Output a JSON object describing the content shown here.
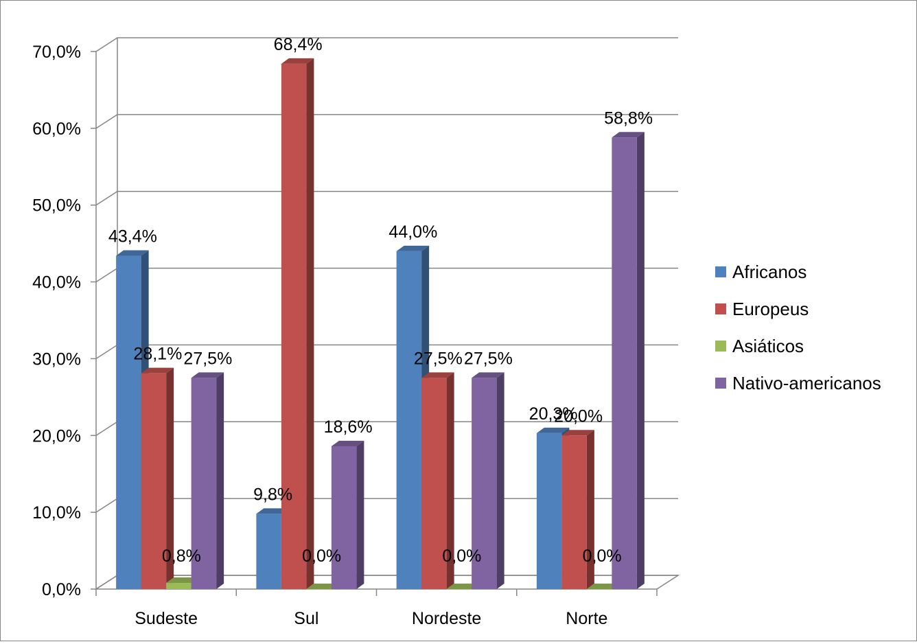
{
  "chart_data": {
    "type": "bar",
    "categories": [
      "Sudeste",
      "Sul",
      "Nordeste",
      "Norte"
    ],
    "series": [
      {
        "name": "Africanos",
        "values": [
          43.4,
          9.8,
          44.0,
          20.3
        ],
        "labels": [
          "43,4%",
          "9,8%",
          "44,0%",
          "20,3%"
        ],
        "color": "#4F81BD"
      },
      {
        "name": "Europeus",
        "values": [
          28.1,
          68.4,
          27.5,
          20.0
        ],
        "labels": [
          "28,1%",
          "68,4%",
          "27,5%",
          "20,0%"
        ],
        "color": "#C0504D"
      },
      {
        "name": "Asiáticos",
        "values": [
          0.8,
          0.0,
          0.0,
          0.0
        ],
        "labels": [
          "0,8%",
          "0,0%",
          "0,0%",
          "0,0%"
        ],
        "color": "#9BBB59"
      },
      {
        "name": "Nativo-americanos",
        "values": [
          27.5,
          18.6,
          27.5,
          58.8
        ],
        "labels": [
          "27,5%",
          "18,6%",
          "27,5%",
          "58,8%"
        ],
        "color": "#8064A2"
      }
    ],
    "y_ticks": [
      "0,0%",
      "10,0%",
      "20,0%",
      "30,0%",
      "40,0%",
      "50,0%",
      "60,0%",
      "70,0%"
    ],
    "ylim": [
      0,
      70
    ],
    "grid": true,
    "legend": "right",
    "style": "3d-clustered-column"
  }
}
